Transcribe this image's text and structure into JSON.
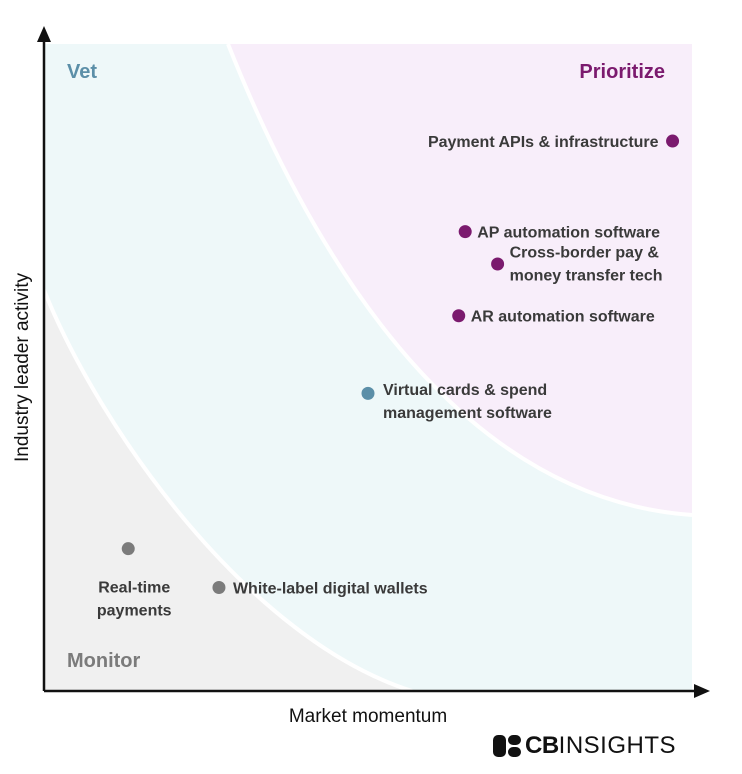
{
  "chart_data": {
    "type": "scatter",
    "xlabel": "Market momentum",
    "ylabel": "Industry leader activity",
    "xlim": [
      0,
      100
    ],
    "ylim": [
      0,
      100
    ],
    "grid": false,
    "zones": [
      {
        "key": "vet",
        "label": "Vet",
        "color": "#5b8fa8",
        "fill": "#eef8f9"
      },
      {
        "key": "prioritize",
        "label": "Prioritize",
        "color": "#7b1a6e",
        "fill": "#f8eefa"
      },
      {
        "key": "monitor",
        "label": "Monitor",
        "color": "#7b7b7b",
        "fill": "#f0f0f0"
      }
    ],
    "points": [
      {
        "lines": [
          "Payment APIs & infrastructure"
        ],
        "x": 97,
        "y": 85,
        "zone": "prioritize"
      },
      {
        "lines": [
          "AP automation software"
        ],
        "x": 65,
        "y": 71,
        "zone": "prioritize"
      },
      {
        "lines": [
          "Cross-border pay &",
          "money transfer tech"
        ],
        "x": 70,
        "y": 66,
        "zone": "prioritize"
      },
      {
        "lines": [
          "AR automation software"
        ],
        "x": 64,
        "y": 58,
        "zone": "prioritize"
      },
      {
        "lines": [
          "Virtual cards & spend",
          "management software"
        ],
        "x": 50,
        "y": 46,
        "zone": "vet"
      },
      {
        "lines": [
          "Real-time",
          "payments"
        ],
        "x": 13,
        "y": 22,
        "zone": "monitor"
      },
      {
        "lines": [
          "White-label digital wallets"
        ],
        "x": 27,
        "y": 16,
        "zone": "monitor"
      }
    ]
  },
  "brand": {
    "logo_bold": "CB",
    "logo_light": "INSIGHTS"
  }
}
